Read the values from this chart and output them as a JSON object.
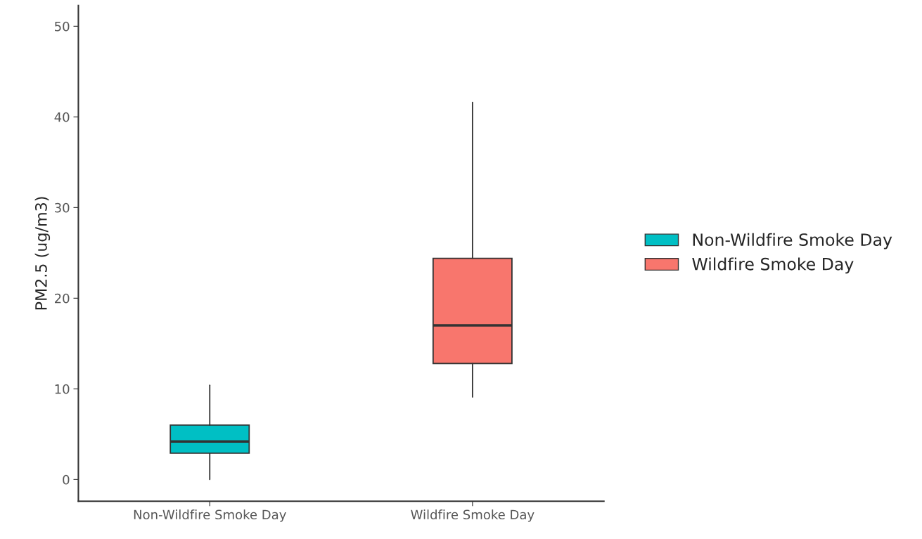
{
  "chart_data": {
    "type": "box",
    "ylabel": "PM2.5 (ug/m3)",
    "categories": [
      "Non-Wildfire Smoke Day",
      "Wildfire Smoke Day"
    ],
    "series": [
      {
        "name": "Non-Wildfire Smoke Day",
        "color": "#00bfc4",
        "boxes": [
          {
            "low": 0.0,
            "q1": 2.9,
            "median": 4.2,
            "q3": 6.0,
            "high": 10.4
          },
          null
        ]
      },
      {
        "name": "Wildfire Smoke Day",
        "color": "#f8766d",
        "boxes": [
          null,
          {
            "low": 9.1,
            "q1": 12.8,
            "median": 17.0,
            "q3": 24.4,
            "high": 41.6
          }
        ]
      }
    ],
    "ylim": [
      -2.4,
      52.3
    ],
    "yticks": [
      0,
      10,
      20,
      30,
      40,
      50
    ],
    "grid": false,
    "legend": "right"
  }
}
